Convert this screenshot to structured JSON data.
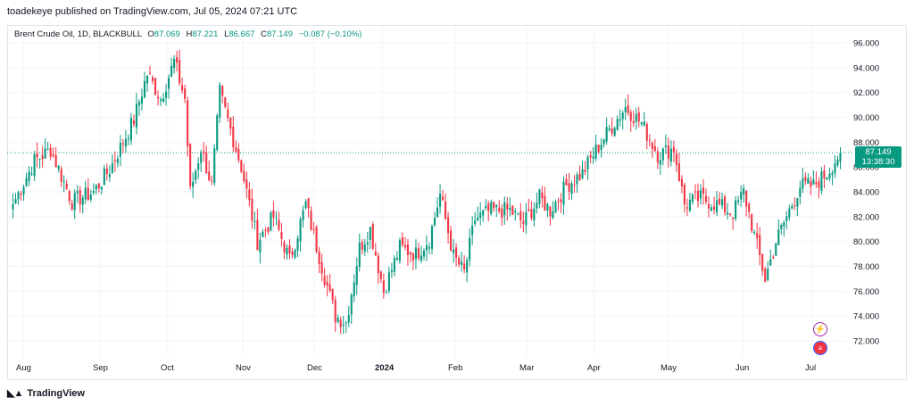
{
  "header": {
    "publisher_line": "toadekeye published on TradingView.com, Jul 05, 2024 07:21 UTC"
  },
  "legend": {
    "symbol": "Brent Crude Oil, 1D, BLACKBULL",
    "open_key": "O",
    "open": "87.069",
    "high_key": "H",
    "high": "87.221",
    "low_key": "L",
    "low": "86.667",
    "close_key": "C",
    "close": "87.149",
    "change": "−0.087 (−0.10%)"
  },
  "price_badge": {
    "price": "87.149",
    "countdown": "13:38:30"
  },
  "footer": {
    "brand": "TradingView",
    "logo_icon": "tradingview-logo-icon"
  },
  "icons": {
    "flash": "flash-icon",
    "flag": "us-flag-icon"
  },
  "colors": {
    "up": "#089981",
    "down": "#f23645",
    "grid": "#f0f3fa",
    "text": "#131722"
  },
  "chart_data": {
    "type": "candlestick",
    "y_axis": {
      "min": 71,
      "max": 97,
      "ticks": [
        "96.000",
        "94.000",
        "92.000",
        "90.000",
        "88.000",
        "86.000",
        "84.000",
        "82.000",
        "80.000",
        "78.000",
        "76.000",
        "74.000",
        "72.000"
      ]
    },
    "x_axis": {
      "labels": [
        "Aug",
        "Sep",
        "Oct",
        "Nov",
        "Dec",
        "2024",
        "Feb",
        "Mar",
        "Apr",
        "May",
        "Jun",
        "Jul"
      ]
    },
    "last_price": 87.149,
    "price_path": [
      [
        0,
        83.0
      ],
      [
        8,
        86.5
      ],
      [
        14,
        87.4
      ],
      [
        22,
        83.2
      ],
      [
        30,
        84.0
      ],
      [
        36,
        85.8
      ],
      [
        45,
        89.8
      ],
      [
        50,
        93.5
      ],
      [
        55,
        91.5
      ],
      [
        60,
        94.5
      ],
      [
        64,
        91.5
      ],
      [
        66,
        84.0
      ],
      [
        70,
        87.5
      ],
      [
        74,
        84.5
      ],
      [
        77,
        92.0
      ],
      [
        85,
        86.0
      ],
      [
        91,
        80.0
      ],
      [
        97,
        82.0
      ],
      [
        103,
        78.5
      ],
      [
        109,
        83.0
      ],
      [
        115,
        78.0
      ],
      [
        120,
        74.0
      ],
      [
        124,
        73.5
      ],
      [
        129,
        79.5
      ],
      [
        133,
        81.0
      ],
      [
        138,
        76.0
      ],
      [
        144,
        79.5
      ],
      [
        150,
        79.0
      ],
      [
        155,
        80.2
      ],
      [
        159,
        83.8
      ],
      [
        164,
        78.8
      ],
      [
        168,
        77.5
      ],
      [
        172,
        81.8
      ],
      [
        178,
        82.5
      ],
      [
        185,
        82.5
      ],
      [
        190,
        81.5
      ],
      [
        196,
        83.5
      ],
      [
        200,
        82.5
      ],
      [
        206,
        84.5
      ],
      [
        212,
        85.5
      ],
      [
        216,
        87.0
      ],
      [
        222,
        89.0
      ],
      [
        228,
        90.8
      ],
      [
        234,
        89.5
      ],
      [
        240,
        87.0
      ],
      [
        246,
        87.5
      ],
      [
        250,
        83.0
      ],
      [
        256,
        83.5
      ],
      [
        262,
        83.0
      ],
      [
        268,
        82.3
      ],
      [
        272,
        84.0
      ],
      [
        276,
        80.5
      ],
      [
        280,
        77.0
      ],
      [
        284,
        80.0
      ],
      [
        288,
        82.0
      ],
      [
        293,
        84.5
      ],
      [
        298,
        84.5
      ],
      [
        303,
        85.5
      ],
      [
        308,
        87.15
      ]
    ]
  }
}
